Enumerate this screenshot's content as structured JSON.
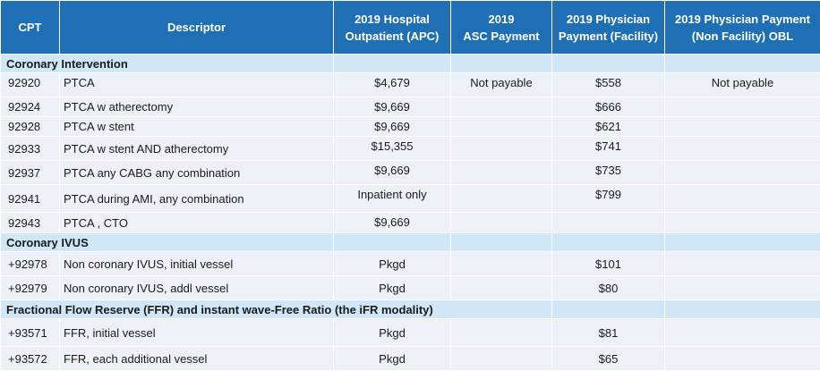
{
  "header": {
    "cpt": "CPT",
    "descriptor": "Descriptor",
    "apc_line1": "2019 Hospital",
    "apc_line2": "Outpatient (APC)",
    "asc_line1": "2019",
    "asc_line2": "ASC Payment",
    "phys_line1": "2019 Physician",
    "phys_line2": "Payment (Facility)",
    "obl_line1": "2019 Physician Payment",
    "obl_line2": "(Non Facility)  OBL"
  },
  "sections": {
    "coronary_intervention": "Coronary Intervention",
    "coronary_ivus": "Coronary IVUS",
    "ffr": "Fractional Flow Reserve (FFR) and instant wave-Free Ratio (the iFR modality)"
  },
  "rows": [
    {
      "cpt": "92920",
      "desc": "PTCA",
      "apc": "$4,679",
      "asc": "Not payable",
      "phys": "$558",
      "obl": "Not payable"
    },
    {
      "cpt": "92924",
      "desc": "PTCA w atherectomy",
      "apc": "$9,669",
      "asc": "",
      "phys": "$666",
      "obl": ""
    },
    {
      "cpt": "92928",
      "desc": "PTCA w stent",
      "apc": "$9,669",
      "asc": "",
      "phys": "$621",
      "obl": ""
    },
    {
      "cpt": "92933",
      "desc": "PTCA w stent AND atherectomy",
      "apc": "$15,355",
      "asc": "",
      "phys": "$741",
      "obl": ""
    },
    {
      "cpt": "92937",
      "desc": "PTCA any CABG  any combination",
      "apc": "$9,669",
      "asc": "",
      "phys": "$735",
      "obl": ""
    },
    {
      "cpt": "92941",
      "desc": "PTCA during AMI, any combination",
      "apc": "Inpatient only",
      "asc": "",
      "phys": "$799",
      "obl": ""
    },
    {
      "cpt": "92943",
      "desc": "PTCA , CTO",
      "apc": "$9,669",
      "asc": "",
      "phys": "",
      "obl": ""
    },
    {
      "cpt": "+92978",
      "desc": "Non coronary IVUS, initial vessel",
      "apc": "Pkgd",
      "asc": "",
      "phys": "$101",
      "obl": ""
    },
    {
      "cpt": "+92979",
      "desc": "Non coronary IVUS, addl vessel",
      "apc": "Pkgd",
      "asc": "",
      "phys": "$80",
      "obl": ""
    },
    {
      "cpt": "+93571",
      "desc": "FFR, initial vessel",
      "apc": "Pkgd",
      "asc": "",
      "phys": "$81",
      "obl": ""
    },
    {
      "cpt": "+93572",
      "desc": "FFR, each additional vessel",
      "apc": "Pkgd",
      "asc": "",
      "phys": "$65",
      "obl": ""
    }
  ]
}
